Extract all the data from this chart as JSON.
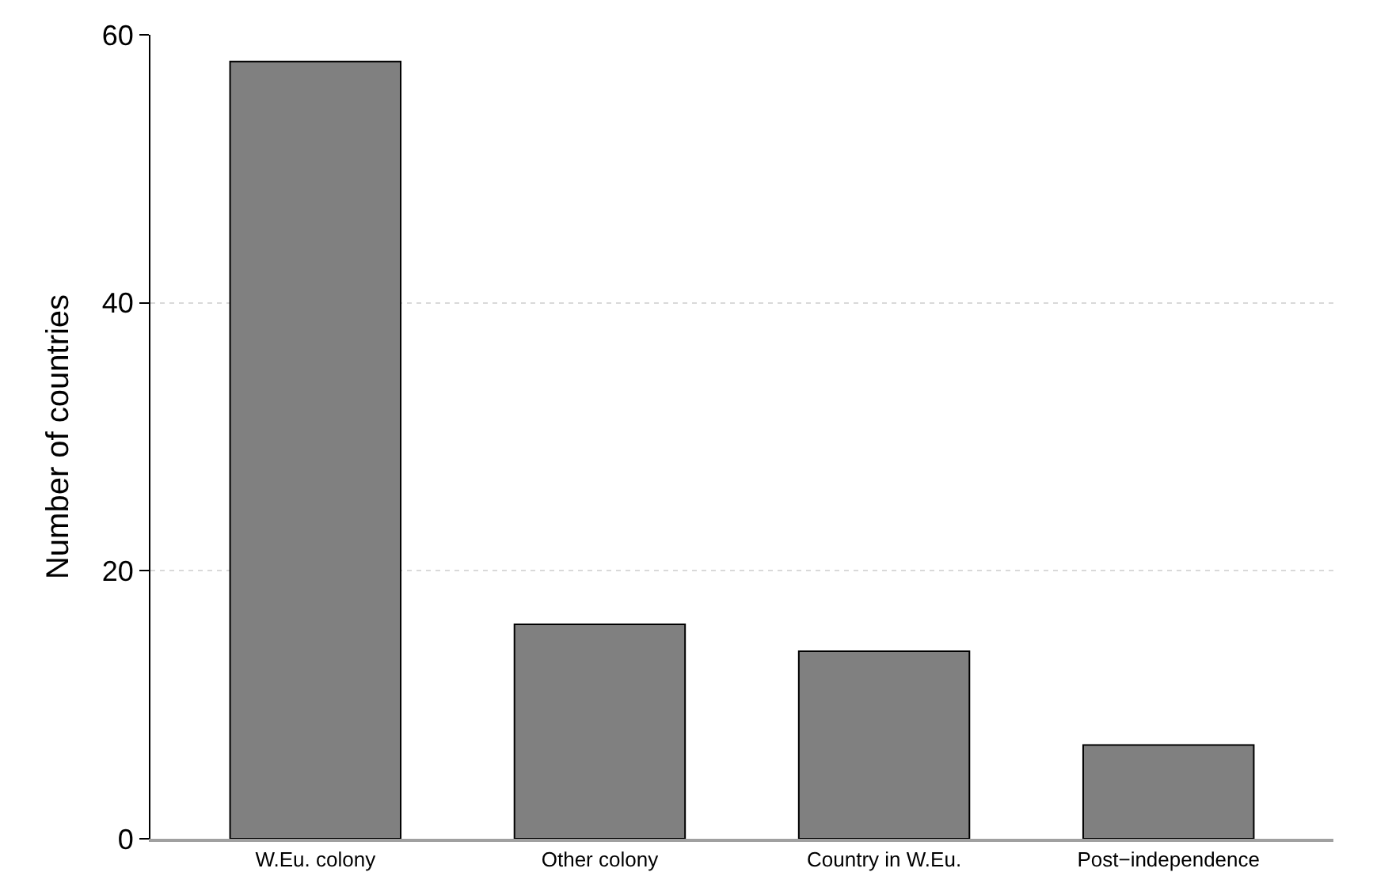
{
  "chart_data": {
    "type": "bar",
    "ylabel": "Number of countries",
    "categories": [
      "W.Eu. colony",
      "Other colony",
      "Country in W.Eu.",
      "Post−independence"
    ],
    "values": [
      58,
      16,
      14,
      7
    ],
    "color": "#808080",
    "ylim": [
      0,
      60
    ],
    "yticks": [
      0,
      20,
      40,
      60
    ],
    "grid": "y",
    "legend": false
  }
}
